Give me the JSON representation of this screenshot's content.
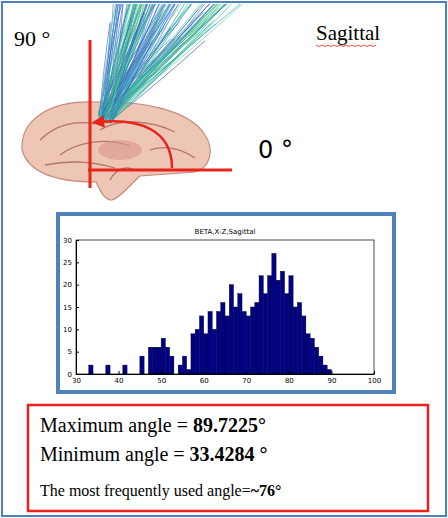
{
  "chart_data": {
    "type": "histogram",
    "title": "BETA,X-Z,Sagittal",
    "bins": [
      33,
      34,
      35,
      36,
      37,
      38,
      39,
      40,
      41,
      42,
      43,
      44,
      45,
      46,
      47,
      48,
      49,
      50,
      51,
      52,
      53,
      54,
      55,
      56,
      57,
      58,
      59,
      60,
      61,
      62,
      63,
      64,
      65,
      66,
      67,
      68,
      69,
      70,
      71,
      72,
      73,
      74,
      75,
      76,
      77,
      78,
      79,
      80,
      81,
      82,
      83,
      84,
      85,
      86,
      87,
      88,
      89,
      90
    ],
    "values": [
      2,
      0,
      0,
      0,
      2,
      0,
      0,
      0,
      2,
      0,
      0,
      0,
      4,
      0,
      6,
      6,
      6,
      8,
      6,
      4,
      0,
      2,
      4,
      1,
      9,
      10,
      13,
      9,
      14,
      10,
      14,
      16,
      13,
      20,
      15,
      18,
      14,
      13,
      15,
      16,
      22,
      18,
      22,
      27,
      21,
      23,
      18,
      22,
      15,
      16,
      13,
      9,
      8,
      6,
      4,
      2,
      1
    ],
    "color": "#00008b",
    "xlim": [
      30,
      100
    ],
    "xticks": [
      30,
      40,
      50,
      60,
      70,
      80,
      90,
      100
    ],
    "ylim": [
      0,
      30
    ],
    "yticks": [
      0,
      5,
      10,
      15,
      20,
      25,
      30
    ]
  },
  "figure": {
    "view_label": "Sagittal",
    "angle_labels": [
      "90 °",
      "0 °"
    ]
  },
  "stats": [
    {
      "label": "Maximum angle  =  ",
      "value": 89.7225,
      "unit": "°"
    },
    {
      "label": "Minimum angle  =  ",
      "value": 33.4284,
      "unit": " °"
    },
    {
      "label": "The most frequently used angle=",
      "value": "~76",
      "unit": "°"
    }
  ]
}
